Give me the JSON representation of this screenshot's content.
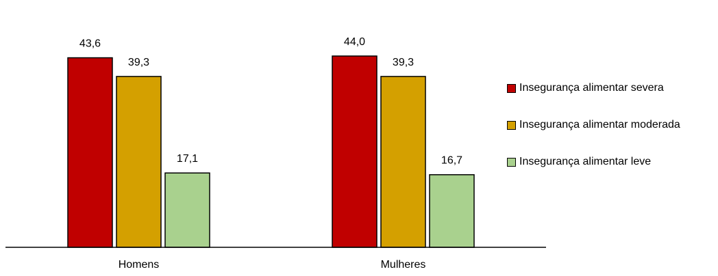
{
  "chart_data": {
    "type": "bar",
    "title": "",
    "xlabel": "",
    "ylabel": "",
    "categories": [
      "Homens",
      "Mulheres"
    ],
    "series": [
      {
        "name": "Insegurança alimentar severa",
        "color": "#c00000",
        "values": [
          43.6,
          44.0
        ],
        "labels": [
          "43,6",
          "44,0"
        ]
      },
      {
        "name": "Insegurança alimentar moderada",
        "color": "#d4a000",
        "values": [
          39.3,
          39.3
        ],
        "labels": [
          "39,3",
          "39,3"
        ]
      },
      {
        "name": "Insegurança alimentar leve",
        "color": "#a9d18e",
        "values": [
          17.1,
          16.7
        ],
        "labels": [
          "17,1",
          "16,7"
        ]
      }
    ],
    "ylim": [
      0,
      50
    ],
    "grid": false,
    "legend_position": "right"
  }
}
